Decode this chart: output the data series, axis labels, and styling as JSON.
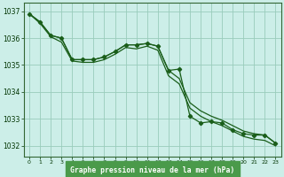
{
  "x": [
    0,
    1,
    2,
    3,
    4,
    5,
    6,
    7,
    8,
    9,
    10,
    11,
    12,
    13,
    14,
    15,
    16,
    17,
    18,
    19,
    20,
    21,
    22,
    23
  ],
  "y_main": [
    1036.9,
    1036.6,
    1036.1,
    1036.0,
    1035.2,
    1035.2,
    1035.2,
    1035.3,
    1035.5,
    1035.75,
    1035.75,
    1035.8,
    1035.7,
    1034.8,
    1034.85,
    1033.1,
    1032.85,
    1032.9,
    1032.85,
    1032.6,
    1032.45,
    1032.4,
    1032.4,
    1032.1
  ],
  "y_upper": [
    1036.9,
    1036.6,
    1036.1,
    1036.0,
    1035.2,
    1035.2,
    1035.2,
    1035.3,
    1035.5,
    1035.75,
    1035.75,
    1035.8,
    1035.7,
    1034.8,
    1034.5,
    1033.6,
    1033.3,
    1033.1,
    1032.95,
    1032.75,
    1032.55,
    1032.45,
    1032.4,
    1032.1
  ],
  "y_lower": [
    1036.9,
    1036.55,
    1036.05,
    1035.85,
    1035.15,
    1035.1,
    1035.1,
    1035.2,
    1035.4,
    1035.65,
    1035.6,
    1035.7,
    1035.55,
    1034.6,
    1034.3,
    1033.4,
    1033.1,
    1032.9,
    1032.75,
    1032.55,
    1032.35,
    1032.25,
    1032.2,
    1032.0
  ],
  "line_color": "#1a5e1a",
  "bg_color": "#cceee8",
  "grid_color": "#99ccbb",
  "xlabel": "Graphe pression niveau de la mer (hPa)",
  "xlabel_bg": "#4a9a4a",
  "ylim": [
    1031.6,
    1037.3
  ],
  "yticks": [
    1032,
    1033,
    1034,
    1035,
    1036,
    1037
  ],
  "xtick_labels": [
    "0",
    "1",
    "2",
    "3",
    "4",
    "5",
    "6",
    "7",
    "8",
    "9",
    "10",
    "11",
    "12",
    "13",
    "14",
    "15",
    "16",
    "17",
    "18",
    "19",
    "20",
    "21",
    "22",
    "23"
  ]
}
